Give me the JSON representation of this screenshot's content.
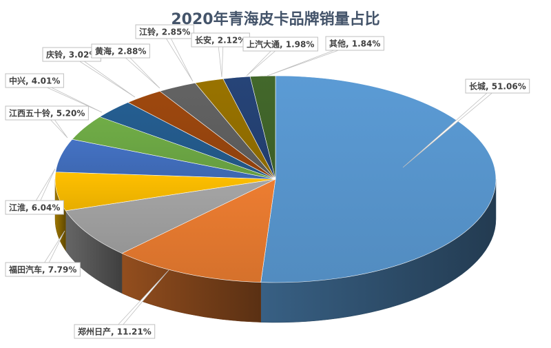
{
  "chart_data": {
    "type": "pie",
    "title": "2020年青海皮卡品牌销量占比",
    "unit": "%",
    "slices": [
      {
        "name": "长城",
        "value": 51.06,
        "label": "长城, 51.06%",
        "color": "#5b9bd5"
      },
      {
        "name": "郑州日产",
        "value": 11.21,
        "label": "郑州日产, 11.21%",
        "color": "#ed7d31"
      },
      {
        "name": "福田汽车",
        "value": 7.79,
        "label": "福田汽车, 7.79%",
        "color": "#a5a5a5"
      },
      {
        "name": "江淮",
        "value": 6.04,
        "label": "江淮, 6.04%",
        "color": "#ffc000"
      },
      {
        "name": "江西五十铃",
        "value": 5.2,
        "label": "江西五十铃, 5.20%",
        "color": "#4472c4"
      },
      {
        "name": "中兴",
        "value": 4.01,
        "label": "中兴, 4.01%",
        "color": "#70ad47"
      },
      {
        "name": "庆铃",
        "value": 3.02,
        "label": "庆铃, 3.02%",
        "color": "#255e91"
      },
      {
        "name": "黄海",
        "value": 2.88,
        "label": "黄海, 2.88%",
        "color": "#9e480e"
      },
      {
        "name": "江铃",
        "value": 2.85,
        "label": "江铃, 2.85%",
        "color": "#636363"
      },
      {
        "name": "长安",
        "value": 2.12,
        "label": "长安, 2.12%",
        "color": "#997300"
      },
      {
        "name": "上汽大通",
        "value": 1.98,
        "label": "上汽大通, 1.98%",
        "color": "#264478"
      },
      {
        "name": "其他",
        "value": 1.84,
        "label": "其他, 1.84%",
        "color": "#43682b"
      }
    ]
  }
}
